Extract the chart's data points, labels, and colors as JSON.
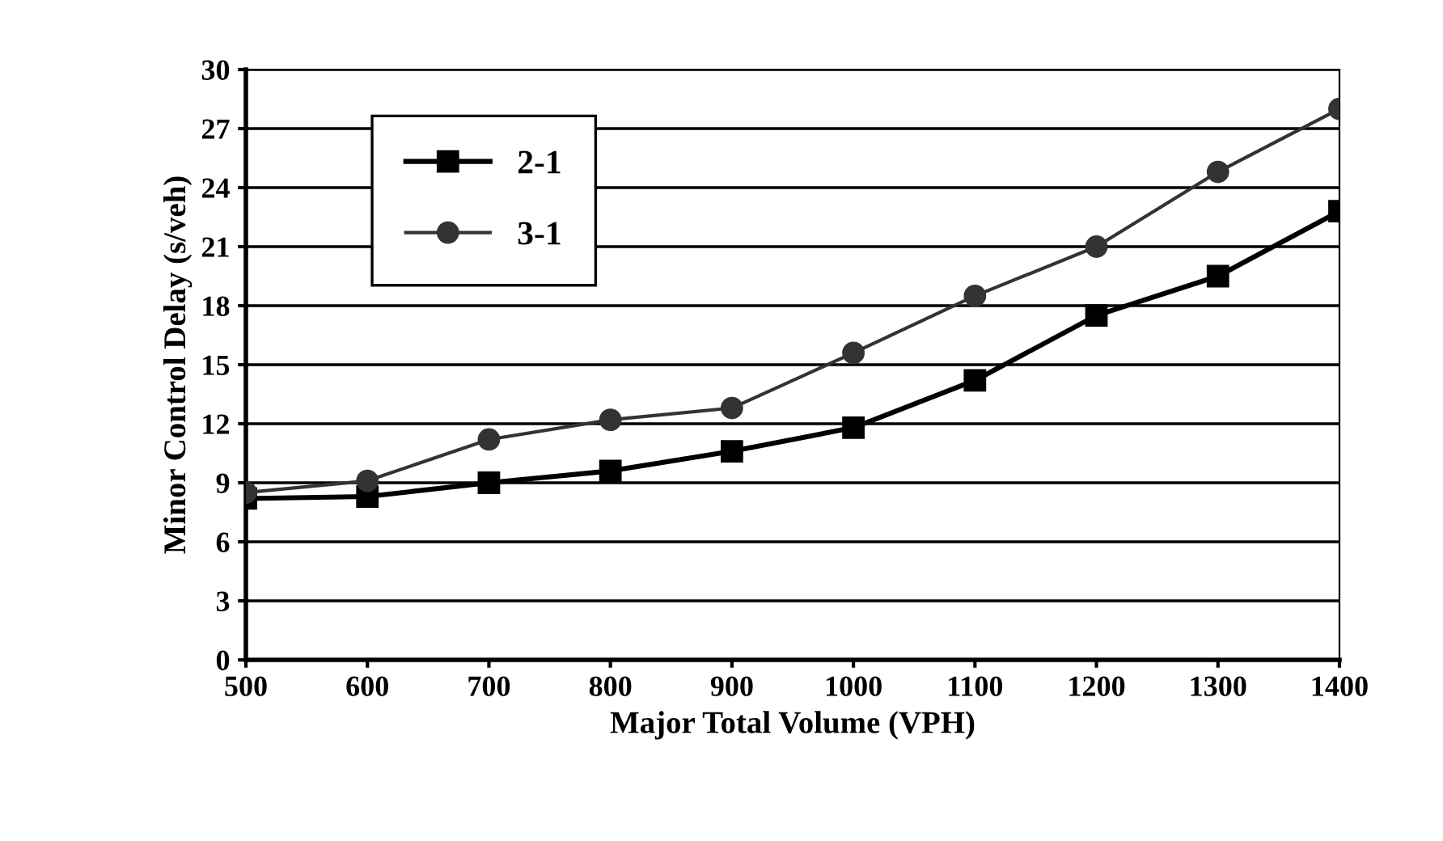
{
  "chart_data": {
    "type": "line",
    "xlabel": "Major Total Volume (VPH)",
    "ylabel": "Minor Control Delay (s/veh)",
    "x": [
      500,
      600,
      700,
      800,
      900,
      1000,
      1100,
      1200,
      1300,
      1400
    ],
    "series": [
      {
        "name": "2-1",
        "color": "#000000",
        "marker": "square",
        "values": [
          8.2,
          8.3,
          9.0,
          9.6,
          10.6,
          11.8,
          14.2,
          17.5,
          19.5,
          22.8
        ]
      },
      {
        "name": "3-1",
        "color": "#333333",
        "marker": "circle",
        "values": [
          8.5,
          9.1,
          11.2,
          12.2,
          12.8,
          15.6,
          18.5,
          21.0,
          24.8,
          28.0
        ]
      }
    ],
    "xlim": [
      500,
      1400
    ],
    "xticks": [
      500,
      600,
      700,
      800,
      900,
      1000,
      1100,
      1200,
      1300,
      1400
    ],
    "ylim": [
      0,
      30
    ],
    "yticks": [
      0,
      3,
      6,
      9,
      12,
      15,
      18,
      21,
      24,
      27,
      30
    ],
    "grid": "y",
    "legend": "top left",
    "line_style": "solid"
  }
}
